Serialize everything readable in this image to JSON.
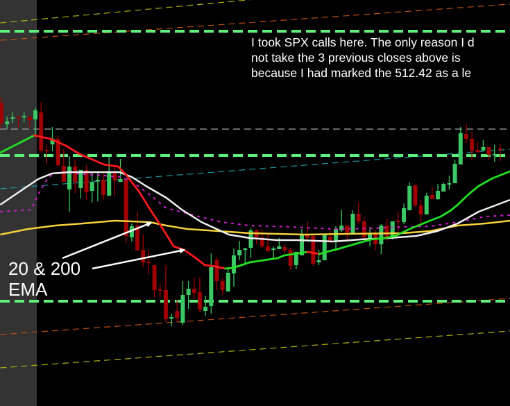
{
  "annotations": {
    "note_lines": [
      "I took SPX calls here. The only reason I d",
      "not take the 3 previous closes above is",
      "because I had marked the 512.42 as a le"
    ],
    "ema_label_line1": "20 & 200",
    "ema_label_line2": "EMA"
  },
  "chart_data": {
    "type": "candlestick",
    "colors": {
      "background": "#000000",
      "session_shade": "#333333",
      "up": "#3cc864",
      "down": "#a00000",
      "level": "#5ef07a",
      "gray_level": "#8a8a8a",
      "ema_up": "#22e022",
      "ema_down": "#ff1a1a",
      "white_ma": "#f0f0f0",
      "yellow_ma": "#f5d23a",
      "magenta_ma": "#d020d0",
      "cyan_line": "#1a9aa8",
      "orange_channel": "#c05010",
      "yellow_channel": "#b0b010"
    },
    "price_range": [
      492.5,
      521.72
    ],
    "candles": [
      [
        514.32,
        514.72,
        512.47,
        512.82
      ],
      [
        512.77,
        513.32,
        512.42,
        512.97
      ],
      [
        513.22,
        513.62,
        512.87,
        513.27
      ],
      [
        513.32,
        513.32,
        512.57,
        513.27
      ],
      [
        513.32,
        513.62,
        512.92,
        513.37
      ],
      [
        513.32,
        513.32,
        512.57,
        513.07
      ],
      [
        513.12,
        513.97,
        511.97,
        513.77
      ],
      [
        513.62,
        514.37,
        510.72,
        510.87
      ],
      [
        510.92,
        511.32,
        509.82,
        510.82
      ],
      [
        511.32,
        512.57,
        510.82,
        511.72
      ],
      [
        511.72,
        511.97,
        509.72,
        509.82
      ],
      [
        509.77,
        510.97,
        508.62,
        508.62
      ],
      [
        508.07,
        510.47,
        506.47,
        509.72
      ],
      [
        509.72,
        510.22,
        507.82,
        508.62
      ],
      [
        508.17,
        509.47,
        507.42,
        509.47
      ],
      [
        509.47,
        509.82,
        507.32,
        507.87
      ],
      [
        507.97,
        509.32,
        507.12,
        508.62
      ],
      [
        508.67,
        509.37,
        507.22,
        508.77
      ],
      [
        508.77,
        509.22,
        507.32,
        507.67
      ],
      [
        507.62,
        510.47,
        507.62,
        509.27
      ],
      [
        509.37,
        509.72,
        507.62,
        508.72
      ],
      [
        508.62,
        510.27,
        508.62,
        508.82
      ],
      [
        508.82,
        508.82,
        504.22,
        504.72
      ],
      [
        504.62,
        505.62,
        504.32,
        505.42
      ],
      [
        505.47,
        506.42,
        503.67,
        503.67
      ],
      [
        503.72,
        504.82,
        502.47,
        502.82
      ],
      [
        502.87,
        503.72,
        501.97,
        502.77
      ],
      [
        502.62,
        502.62,
        500.32,
        500.82
      ],
      [
        500.87,
        501.22,
        500.32,
        500.77
      ],
      [
        500.82,
        502.62,
        498.52,
        498.72
      ],
      [
        498.77,
        499.12,
        498.22,
        498.87
      ],
      [
        499.32,
        500.12,
        498.52,
        498.82
      ],
      [
        498.47,
        501.47,
        498.32,
        500.47
      ],
      [
        500.47,
        501.47,
        499.47,
        500.92
      ],
      [
        500.92,
        501.72,
        500.22,
        500.62
      ],
      [
        500.67,
        501.72,
        499.22,
        499.42
      ],
      [
        499.32,
        500.42,
        498.97,
        499.62
      ],
      [
        499.67,
        503.47,
        499.12,
        502.47
      ],
      [
        502.97,
        503.22,
        500.82,
        501.47
      ],
      [
        501.47,
        501.67,
        500.47,
        500.82
      ],
      [
        500.72,
        502.47,
        500.72,
        502.07
      ],
      [
        502.02,
        503.82,
        501.07,
        503.32
      ],
      [
        503.32,
        504.37,
        502.97,
        503.72
      ],
      [
        503.77,
        503.87,
        502.72,
        503.82
      ],
      [
        503.87,
        505.27,
        503.12,
        505.12
      ],
      [
        505.12,
        505.22,
        504.12,
        504.62
      ],
      [
        504.62,
        505.22,
        503.87,
        503.97
      ],
      [
        503.97,
        504.87,
        503.62,
        503.62
      ],
      [
        503.77,
        503.97,
        503.07,
        503.82
      ],
      [
        503.77,
        504.57,
        503.77,
        503.97
      ],
      [
        503.92,
        504.12,
        503.47,
        503.67
      ],
      [
        503.72,
        503.87,
        502.27,
        502.57
      ],
      [
        502.62,
        503.57,
        502.32,
        503.57
      ],
      [
        503.32,
        505.22,
        503.32,
        504.87
      ],
      [
        504.87,
        505.72,
        504.37,
        504.57
      ],
      [
        504.72,
        504.82,
        502.57,
        502.72
      ],
      [
        502.82,
        503.72,
        502.62,
        502.97
      ],
      [
        502.97,
        504.82,
        502.97,
        504.82
      ],
      [
        504.67,
        505.07,
        504.22,
        504.32
      ],
      [
        504.37,
        505.42,
        503.62,
        505.22
      ],
      [
        505.12,
        506.62,
        505.02,
        505.47
      ],
      [
        505.47,
        505.47,
        504.37,
        504.92
      ],
      [
        504.87,
        506.57,
        504.87,
        506.32
      ],
      [
        506.32,
        507.12,
        505.57,
        505.77
      ],
      [
        505.77,
        506.07,
        504.47,
        504.62
      ],
      [
        504.42,
        505.37,
        503.97,
        504.87
      ],
      [
        504.87,
        505.12,
        503.72,
        504.12
      ],
      [
        504.12,
        505.57,
        503.42,
        505.47
      ],
      [
        505.47,
        505.97,
        504.32,
        504.57
      ],
      [
        504.57,
        505.77,
        504.47,
        505.77
      ],
      [
        505.82,
        506.42,
        505.07,
        505.72
      ],
      [
        505.72,
        507.07,
        505.57,
        506.72
      ],
      [
        506.57,
        508.57,
        506.57,
        508.32
      ],
      [
        508.37,
        508.42,
        506.82,
        506.92
      ],
      [
        506.92,
        507.32,
        505.57,
        506.27
      ],
      [
        506.27,
        507.82,
        506.27,
        507.62
      ],
      [
        507.67,
        508.27,
        507.37,
        507.37
      ],
      [
        507.37,
        508.47,
        507.32,
        507.97
      ],
      [
        507.92,
        508.57,
        507.92,
        508.47
      ],
      [
        508.47,
        509.07,
        508.07,
        508.52
      ],
      [
        508.52,
        510.22,
        508.52,
        509.92
      ],
      [
        509.87,
        512.57,
        509.87,
        512.12
      ],
      [
        512.07,
        512.82,
        511.42,
        511.72
      ],
      [
        511.72,
        512.22,
        510.22,
        510.87
      ],
      [
        510.92,
        511.47,
        510.72,
        510.77
      ],
      [
        510.87,
        511.62,
        510.87,
        511.12
      ],
      [
        511.12,
        511.12,
        510.22,
        510.57
      ],
      [
        510.57,
        511.27,
        510.07,
        510.62
      ],
      [
        511.02,
        511.32,
        510.12,
        510.92
      ]
    ],
    "levels": [
      {
        "price": 519.47,
        "style": "green-dashed"
      },
      {
        "price": 512.42,
        "style": "gray-dashed"
      },
      {
        "price": 510.52,
        "style": "green-dashed"
      },
      {
        "price": 500.02,
        "style": "green-dashed"
      }
    ],
    "trendlines": [
      {
        "style": "yellow_channel",
        "from": [
          -0.2,
          520.07
        ],
        "to": [
          89.7,
          523.47
        ]
      },
      {
        "style": "orange_channel",
        "from": [
          -0.2,
          518.82
        ],
        "to": [
          89.7,
          521.42
        ]
      },
      {
        "style": "cyan_line",
        "from": [
          -0.2,
          508.12
        ],
        "to": [
          89.7,
          510.97
        ]
      },
      {
        "style": "orange_channel",
        "from": [
          -0.2,
          497.62
        ],
        "to": [
          89.7,
          500.22
        ]
      },
      {
        "style": "yellow_channel",
        "from": [
          -0.2,
          495.22
        ],
        "to": [
          89.7,
          497.87
        ]
      }
    ],
    "moving_averages": {
      "ema_colored": [
        [
          -0.2,
          510.72
        ],
        [
          5.8,
          511.97
        ],
        [
          6.9,
          511.87
        ],
        [
          8.6,
          511.72
        ],
        [
          11.4,
          511.22
        ],
        [
          13.8,
          510.62
        ],
        [
          18.1,
          509.87
        ],
        [
          20.6,
          509.72
        ],
        [
          21.8,
          509.22
        ],
        [
          24.2,
          507.97
        ],
        [
          26.1,
          506.72
        ],
        [
          28.5,
          505.22
        ],
        [
          30.4,
          503.97
        ],
        [
          32.2,
          503.72
        ],
        [
          34.0,
          503.22
        ],
        [
          35.9,
          502.62
        ],
        [
          37.1,
          502.57
        ],
        [
          38.3,
          502.47
        ],
        [
          39.5,
          502.37
        ],
        [
          40.8,
          502.42
        ],
        [
          42.0,
          502.57
        ],
        [
          43.8,
          502.82
        ],
        [
          48.7,
          503.12
        ],
        [
          49.9,
          503.32
        ],
        [
          54.0,
          503.57
        ],
        [
          56.1,
          503.42
        ],
        [
          57.3,
          503.57
        ],
        [
          59.7,
          503.82
        ],
        [
          62.2,
          504.12
        ],
        [
          65.2,
          504.47
        ],
        [
          67.7,
          504.57
        ],
        [
          69.5,
          504.72
        ],
        [
          72.0,
          505.22
        ],
        [
          75.6,
          505.82
        ],
        [
          77.5,
          506.12
        ],
        [
          79.3,
          506.57
        ],
        [
          80.5,
          506.97
        ],
        [
          82.4,
          507.72
        ],
        [
          84.2,
          508.32
        ],
        [
          86.6,
          508.87
        ],
        [
          89.7,
          509.37
        ]
      ],
      "white": [
        [
          -0.2,
          506.97
        ],
        [
          3.4,
          507.97
        ],
        [
          6.5,
          508.82
        ],
        [
          8.9,
          509.22
        ],
        [
          12.0,
          509.32
        ],
        [
          20.8,
          509.32
        ],
        [
          23.0,
          508.97
        ],
        [
          25.5,
          508.32
        ],
        [
          29.1,
          507.47
        ],
        [
          31.8,
          506.62
        ],
        [
          35.3,
          505.72
        ],
        [
          40.1,
          504.82
        ],
        [
          43.8,
          504.57
        ],
        [
          48.7,
          504.42
        ],
        [
          52.4,
          504.42
        ],
        [
          58.5,
          504.32
        ],
        [
          63.4,
          504.47
        ],
        [
          68.3,
          504.57
        ],
        [
          73.2,
          504.72
        ],
        [
          76.9,
          505.07
        ],
        [
          80.5,
          505.62
        ],
        [
          84.2,
          506.47
        ],
        [
          89.7,
          507.32
        ]
      ],
      "yellow": [
        [
          -0.2,
          504.82
        ],
        [
          4.7,
          505.22
        ],
        [
          9.5,
          505.47
        ],
        [
          14.4,
          505.62
        ],
        [
          20.0,
          505.82
        ],
        [
          26.1,
          505.72
        ],
        [
          29.1,
          505.47
        ],
        [
          32.8,
          505.22
        ],
        [
          36.5,
          505.12
        ],
        [
          43.8,
          504.92
        ],
        [
          53.6,
          504.82
        ],
        [
          61.0,
          504.87
        ],
        [
          70.7,
          504.92
        ],
        [
          75.6,
          505.07
        ],
        [
          80.5,
          505.47
        ],
        [
          85.4,
          505.62
        ],
        [
          89.7,
          505.82
        ]
      ],
      "magenta_dotted": [
        [
          -0.2,
          506.47
        ],
        [
          5.3,
          506.62
        ],
        [
          6.5,
          507.72
        ],
        [
          8.3,
          508.97
        ],
        [
          10.2,
          509.32
        ],
        [
          13.2,
          509.22
        ],
        [
          21.2,
          508.97
        ],
        [
          23.6,
          508.47
        ],
        [
          26.1,
          507.72
        ],
        [
          29.1,
          506.72
        ],
        [
          31.6,
          506.47
        ],
        [
          35.3,
          506.07
        ],
        [
          38.9,
          505.72
        ],
        [
          43.8,
          505.47
        ],
        [
          51.2,
          505.37
        ],
        [
          58.5,
          505.22
        ],
        [
          65.9,
          505.27
        ],
        [
          70.7,
          505.37
        ],
        [
          75.6,
          505.42
        ],
        [
          80.5,
          505.72
        ],
        [
          85.4,
          506.12
        ],
        [
          89.7,
          506.22
        ]
      ]
    }
  }
}
